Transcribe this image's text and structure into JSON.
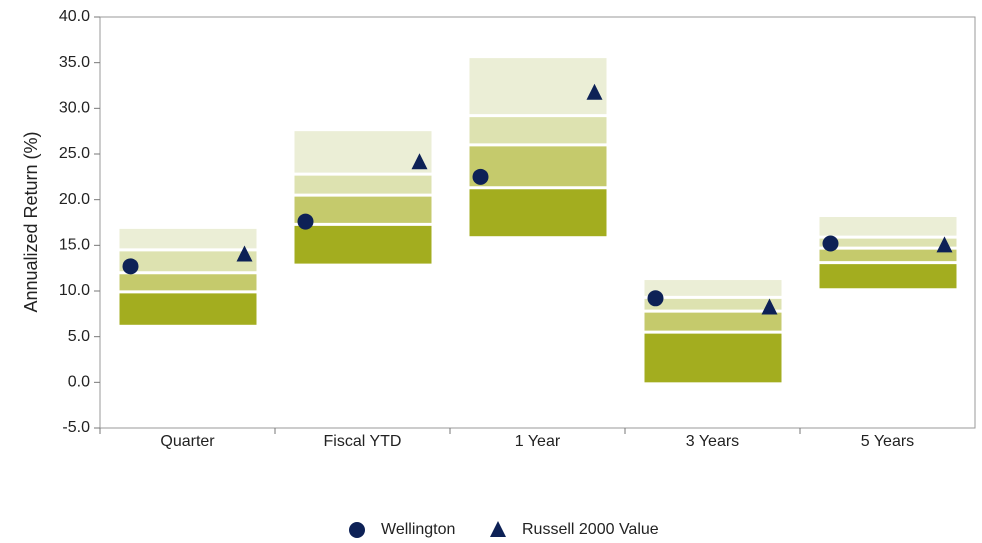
{
  "chart_data": {
    "type": "range_bar",
    "y_axis_label": "Annualized Return (%)",
    "categories": [
      "Quarter",
      "Fiscal YTD",
      "1 Year",
      "3 Years",
      "5 Years"
    ],
    "ranges": [
      [
        16.8,
        14.5,
        12.0,
        9.9,
        6.3
      ],
      [
        27.5,
        22.8,
        20.5,
        17.3,
        13.0
      ],
      [
        35.5,
        29.2,
        26.0,
        21.3,
        16.0
      ],
      [
        11.2,
        9.3,
        7.8,
        5.5,
        0.0
      ],
      [
        18.1,
        15.9,
        14.7,
        13.1,
        10.3
      ]
    ],
    "band_colors": [
      "#ebeed6",
      "#dde2b0",
      "#c5ca6c",
      "#a3ad1f"
    ],
    "series": [
      {
        "name": "Wellington",
        "marker": "circle",
        "color": "#0d2156",
        "values": [
          12.7,
          17.6,
          22.5,
          9.2,
          15.2
        ]
      },
      {
        "name": "Russell 2000 Value",
        "marker": "triangle",
        "color": "#0d2156",
        "values": [
          14.0,
          24.1,
          31.7,
          8.2,
          15.0
        ]
      }
    ],
    "ylim": [
      -5,
      40
    ],
    "yticks": [
      {
        "value": -5,
        "label": "-5.0"
      },
      {
        "value": 0,
        "label": "0.0"
      },
      {
        "value": 5,
        "label": "5.0"
      },
      {
        "value": 10,
        "label": "10.0"
      },
      {
        "value": 15,
        "label": "15.0"
      },
      {
        "value": 20,
        "label": "20.0"
      },
      {
        "value": 25,
        "label": "25.0"
      },
      {
        "value": 30,
        "label": "30.0"
      },
      {
        "value": 35,
        "label": "35.0"
      },
      {
        "value": 40,
        "label": "40.0"
      }
    ],
    "legend": "bottom"
  }
}
